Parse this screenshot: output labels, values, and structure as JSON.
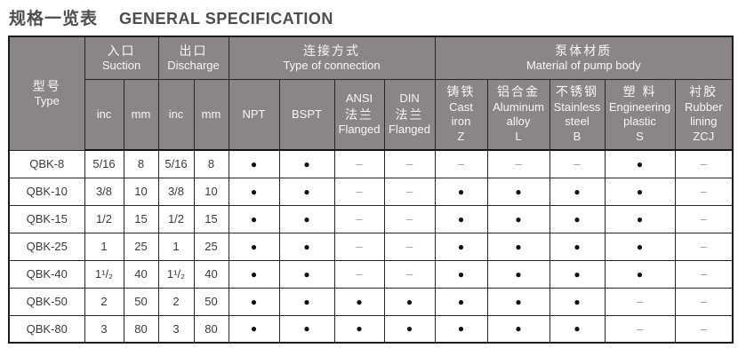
{
  "title": {
    "zh": "规格一览表",
    "en": "GENERAL SPECIFICATION"
  },
  "colors": {
    "header_bg": "#8b8488",
    "header_text": "#f8f7f8",
    "title_text": "#4d4d4f",
    "border": "#262626",
    "dot": "#111111",
    "dash": "#9a9a9a"
  },
  "table": {
    "header": {
      "type": {
        "zh": "型号",
        "en": "Type"
      },
      "suction": {
        "zh": "入口",
        "en": "Suction"
      },
      "discharge": {
        "zh": "出口",
        "en": "Discharge"
      },
      "connection": {
        "zh": "连接方式",
        "en": "Type of connection"
      },
      "material": {
        "zh": "泵体材质",
        "en": "Material of pump body"
      },
      "sub": {
        "suction_inc": "inc",
        "suction_mm": "mm",
        "discharge_inc": "inc",
        "discharge_mm": "mm",
        "npt": "NPT",
        "bspt": "BSPT",
        "ansi": [
          "ANSI",
          "法兰",
          "Flanged"
        ],
        "din": [
          "DIN",
          "法兰",
          "Flanged"
        ],
        "cast_iron": [
          "铸铁",
          "Cast",
          "iron",
          "Z"
        ],
        "aluminum": [
          "铝合金",
          "Aluminum",
          "alloy",
          "L"
        ],
        "stainless": [
          "不锈钢",
          "Stainless",
          "steel",
          "B"
        ],
        "plastic": [
          "塑 料",
          "Engineering",
          "plastic",
          "S"
        ],
        "rubber": [
          "衬胶",
          "Rubber",
          "lining",
          "ZCJ"
        ]
      }
    },
    "symbols": {
      "yes": "●",
      "no": "–"
    },
    "rows": [
      {
        "type": "QBK-8",
        "cells": [
          "5/16",
          "8",
          "5/16",
          "8",
          "●",
          "●",
          "–",
          "–",
          "–",
          "–",
          "–",
          "●",
          "–"
        ]
      },
      {
        "type": "QBK-10",
        "cells": [
          "3/8",
          "10",
          "3/8",
          "10",
          "●",
          "●",
          "–",
          "–",
          "●",
          "●",
          "●",
          "●",
          "–"
        ]
      },
      {
        "type": "QBK-15",
        "cells": [
          "1/2",
          "15",
          "1/2",
          "15",
          "●",
          "●",
          "–",
          "–",
          "●",
          "●",
          "●",
          "●",
          "–"
        ]
      },
      {
        "type": "QBK-25",
        "cells": [
          "1",
          "25",
          "1",
          "25",
          "●",
          "●",
          "–",
          "–",
          "●",
          "●",
          "●",
          "●",
          "–"
        ]
      },
      {
        "type": "QBK-40",
        "cells": [
          "1¹/₂",
          "40",
          "1¹/₂",
          "40",
          "●",
          "●",
          "–",
          "–",
          "●",
          "●",
          "●",
          "●",
          "–"
        ]
      },
      {
        "type": "QBK-50",
        "cells": [
          "2",
          "50",
          "2",
          "50",
          "●",
          "●",
          "●",
          "●",
          "●",
          "●",
          "●",
          "–",
          "–"
        ]
      },
      {
        "type": "QBK-80",
        "cells": [
          "3",
          "80",
          "3",
          "80",
          "●",
          "●",
          "●",
          "●",
          "●",
          "●",
          "●",
          "–",
          "–"
        ]
      }
    ]
  }
}
